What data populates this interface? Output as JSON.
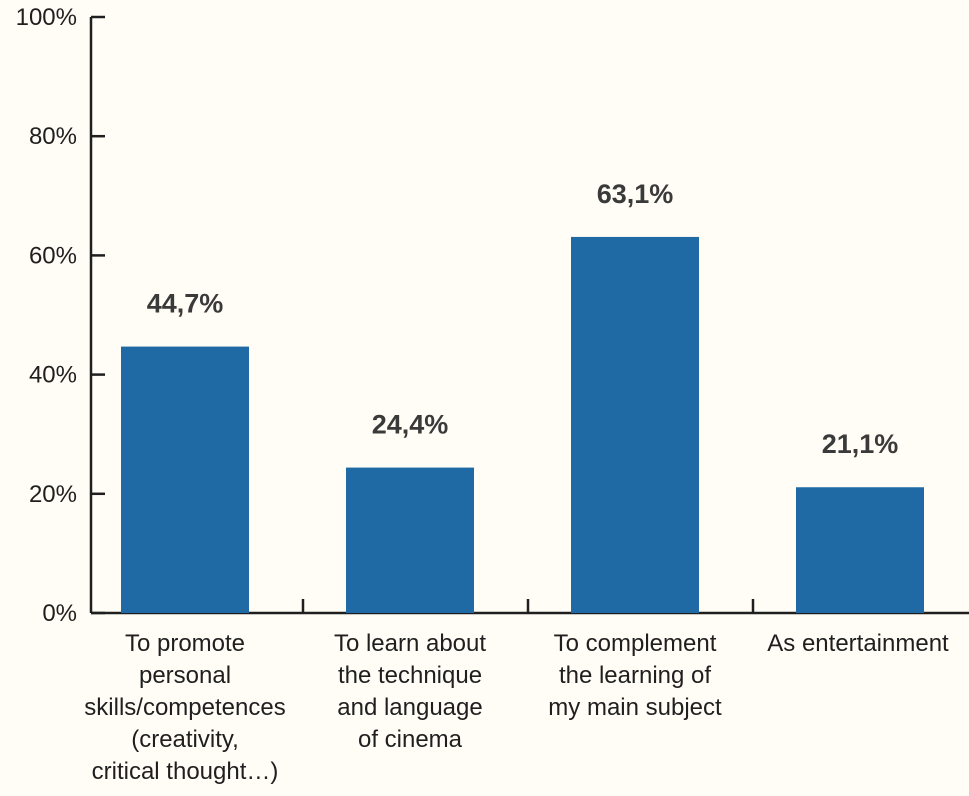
{
  "chart_data": {
    "type": "bar",
    "categories": [
      [
        "To promote",
        "personal",
        "skills/competences",
        "(creativity,",
        "critical thought…)"
      ],
      [
        "To learn about",
        "the technique",
        "and language",
        "of cinema"
      ],
      [
        "To complement",
        "the learning of",
        "my main subject"
      ],
      [
        "As entertainment"
      ]
    ],
    "values": [
      44.7,
      24.4,
      63.1,
      21.1
    ],
    "value_labels": [
      "44,7%",
      "24,4%",
      "63,1%",
      "21,1%"
    ],
    "y_ticks": [
      0,
      20,
      40,
      60,
      80,
      100
    ],
    "y_tick_labels": [
      "0%",
      "20%",
      "40%",
      "60%",
      "80%",
      "100%"
    ],
    "ylim": [
      0,
      100
    ],
    "title": "",
    "xlabel": "",
    "ylabel": "",
    "grid": false,
    "colors": {
      "bar": "#1f6aa5",
      "axis": "#1f1f1f",
      "background": "#fffdf6"
    }
  }
}
